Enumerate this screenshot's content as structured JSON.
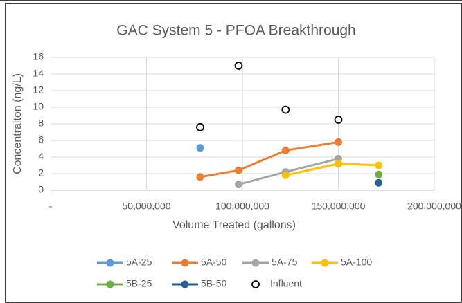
{
  "chart_data": {
    "type": "line",
    "title": "GAC System 5 - PFOA Breakthrough",
    "x_label": "Volume Treated (gallons)",
    "y_label": "Concentraiton (ng/L)",
    "xlim": [
      0,
      200000000
    ],
    "xticks": [
      {
        "value": 0,
        "label": "-"
      },
      {
        "value": 50000000,
        "label": "50,000,000"
      },
      {
        "value": 100000000,
        "label": "100,000,000"
      },
      {
        "value": 150000000,
        "label": "150,000,000"
      },
      {
        "value": 200000000,
        "label": "200,000,000"
      }
    ],
    "ylim": [
      0,
      16
    ],
    "yticks": [
      0,
      2,
      4,
      6,
      8,
      10,
      12,
      14,
      16
    ],
    "grid": true,
    "legend": "bottom",
    "series": [
      {
        "name": "5A-25",
        "color": "#5b9bd5",
        "x": [
          78000000
        ],
        "values": [
          5.1
        ]
      },
      {
        "name": "5A-50",
        "color": "#ed7d31",
        "x": [
          78000000,
          98000000,
          122500000,
          150000000
        ],
        "values": [
          1.6,
          2.4,
          4.8,
          5.8
        ]
      },
      {
        "name": "5A-75",
        "color": "#a5a5a5",
        "x": [
          98000000,
          122500000,
          150000000
        ],
        "values": [
          0.7,
          2.2,
          3.8
        ]
      },
      {
        "name": "5A-100",
        "color": "#ffc000",
        "x": [
          122500000,
          150000000,
          171000000
        ],
        "values": [
          1.8,
          3.2,
          3.0
        ]
      },
      {
        "name": "5B-25",
        "color": "#70ad47",
        "x": [
          171000000
        ],
        "values": [
          1.9
        ]
      },
      {
        "name": "5B-50",
        "color": "#255e91",
        "x": [
          171000000
        ],
        "values": [
          0.9
        ]
      },
      {
        "name": "Influent",
        "color": "#000000",
        "marker": "open",
        "line": false,
        "x": [
          78000000,
          98000000,
          122500000,
          150000000
        ],
        "values": [
          7.6,
          15,
          9.7,
          8.5
        ]
      }
    ]
  }
}
